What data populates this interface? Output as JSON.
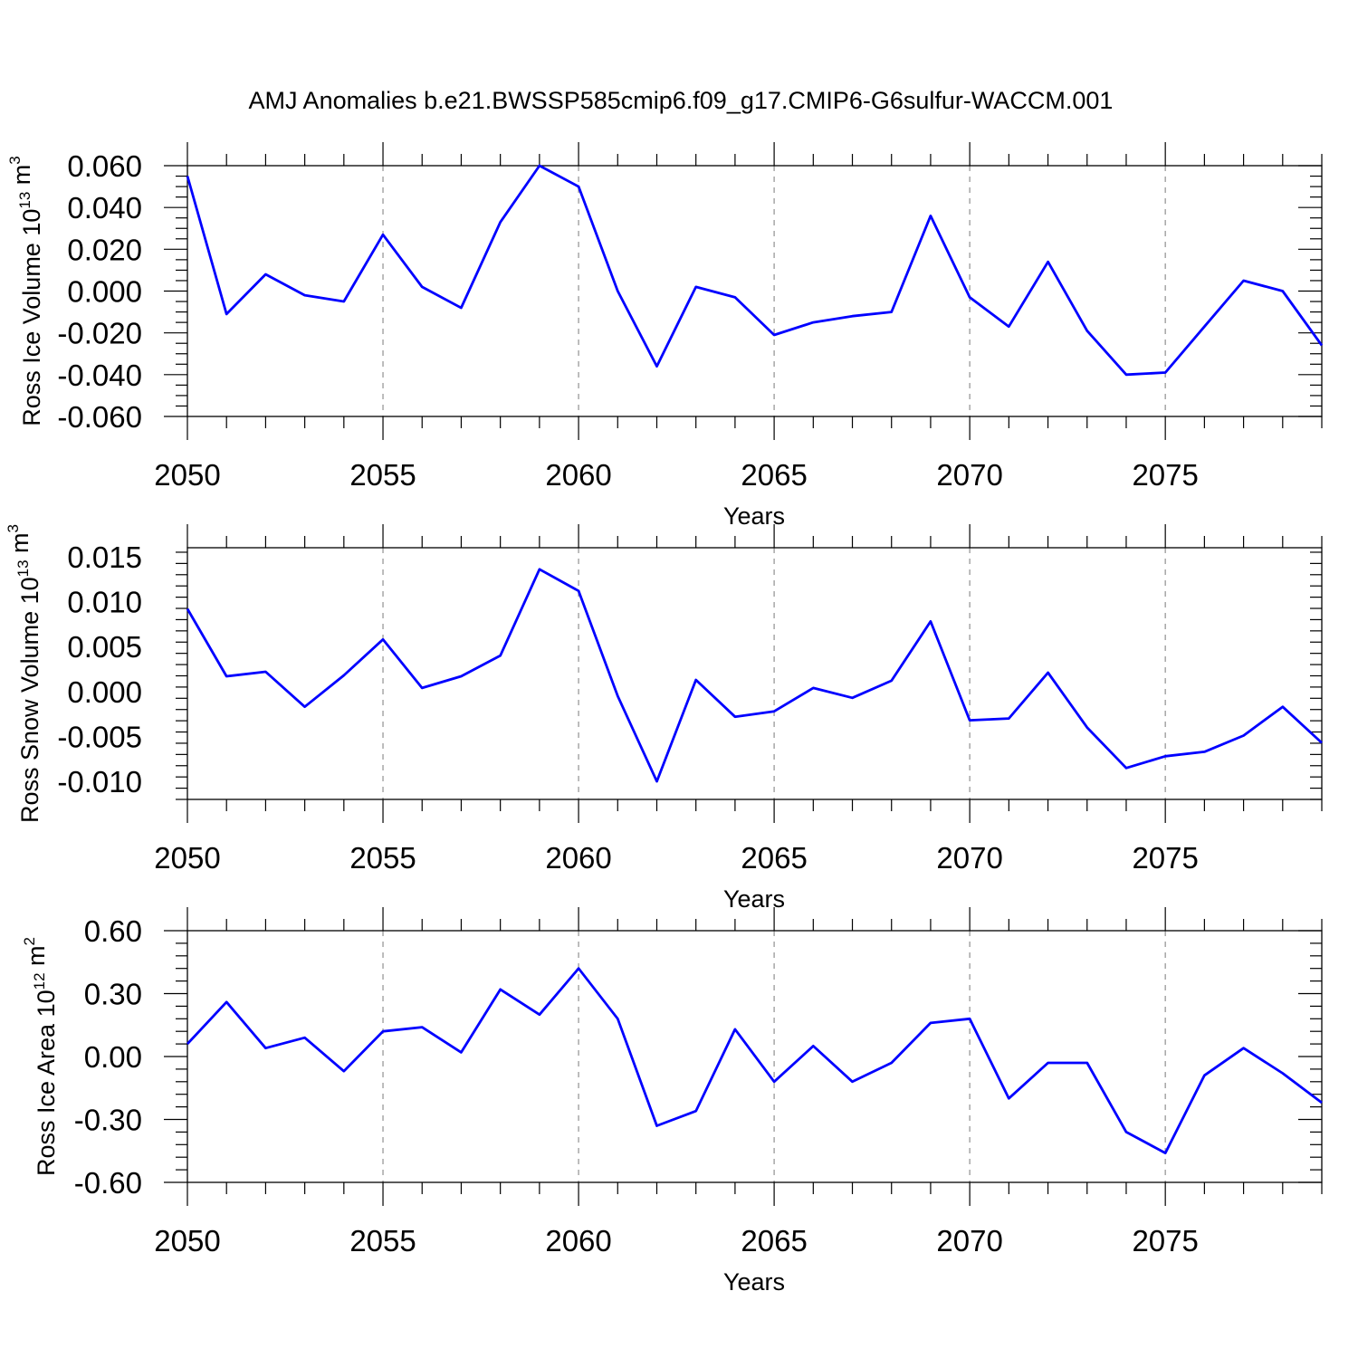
{
  "title": "AMJ Anomalies b.e21.BWSSP585cmip6.f09_g17.CMIP6-G6sulfur-WACCM.001",
  "chart_data": [
    {
      "type": "line",
      "ylabel": "Ross Ice Volume 10",
      "ylabel_exp": "13",
      "ylabel_unit": " m",
      "ylabel_unit_exp": "3",
      "xlabel": "Years",
      "xlim": [
        2050,
        2079
      ],
      "ylim": [
        -0.06,
        0.06
      ],
      "xticks": [
        2050,
        2055,
        2060,
        2065,
        2070,
        2075
      ],
      "xtick_labels": [
        "2050",
        "2055",
        "2060",
        "2065",
        "2070",
        "2075"
      ],
      "yticks": [
        0.06,
        0.04,
        0.02,
        0.0,
        -0.02,
        -0.04,
        -0.06
      ],
      "ytick_labels": [
        "0.060",
        "0.040",
        "0.020",
        "0.000",
        "-0.020",
        "-0.040",
        "-0.060"
      ],
      "grid": "x-dashed-major",
      "series": [
        {
          "color": "#0000ff",
          "x": [
            2050,
            2051,
            2052,
            2053,
            2054,
            2055,
            2056,
            2057,
            2058,
            2059,
            2060,
            2061,
            2062,
            2063,
            2064,
            2065,
            2066,
            2067,
            2068,
            2069,
            2070,
            2071,
            2072,
            2073,
            2074,
            2075,
            2076,
            2077,
            2078,
            2079
          ],
          "values": [
            0.055,
            -0.011,
            0.008,
            -0.002,
            -0.005,
            0.027,
            0.002,
            -0.008,
            0.033,
            0.06,
            0.05,
            0.0,
            -0.036,
            0.002,
            -0.003,
            -0.021,
            -0.015,
            -0.012,
            -0.01,
            0.036,
            -0.003,
            -0.017,
            0.014,
            -0.019,
            -0.04,
            -0.039,
            -0.017,
            0.005,
            0.0,
            -0.026
          ]
        }
      ]
    },
    {
      "type": "line",
      "ylabel": "Ross Snow Volume 10",
      "ylabel_exp": "13",
      "ylabel_unit": " m",
      "ylabel_unit_exp": "3",
      "xlabel": "Years",
      "xlim": [
        2050,
        2079
      ],
      "ylim": [
        -0.012,
        0.016
      ],
      "xticks": [
        2050,
        2055,
        2060,
        2065,
        2070,
        2075
      ],
      "xtick_labels": [
        "2050",
        "2055",
        "2060",
        "2065",
        "2070",
        "2075"
      ],
      "yticks": [
        0.015,
        0.01,
        0.005,
        0.0,
        -0.005,
        -0.01
      ],
      "ytick_labels": [
        "0.015",
        "0.010",
        "0.005",
        "0.000",
        "-0.005",
        "-0.010"
      ],
      "grid": "x-dashed-major",
      "series": [
        {
          "color": "#0000ff",
          "x": [
            2050,
            2051,
            2052,
            2053,
            2054,
            2055,
            2056,
            2057,
            2058,
            2059,
            2060,
            2061,
            2062,
            2063,
            2064,
            2065,
            2066,
            2067,
            2068,
            2069,
            2070,
            2071,
            2072,
            2073,
            2074,
            2075,
            2076,
            2077,
            2078,
            2079
          ],
          "values": [
            0.0092,
            0.0017,
            0.0022,
            -0.0017,
            0.0018,
            0.0058,
            0.0004,
            0.0017,
            0.004,
            0.0136,
            0.0112,
            -0.0005,
            -0.01,
            0.0013,
            -0.0028,
            -0.0022,
            0.0004,
            -0.0007,
            0.0012,
            0.0078,
            -0.0032,
            -0.003,
            0.0021,
            -0.004,
            -0.0085,
            -0.0072,
            -0.0067,
            -0.0049,
            -0.0017,
            -0.0057
          ]
        }
      ]
    },
    {
      "type": "line",
      "ylabel": "Ross Ice Area 10",
      "ylabel_exp": "12",
      "ylabel_unit": " m",
      "ylabel_unit_exp": "2",
      "xlabel": "Years",
      "xlim": [
        2050,
        2079
      ],
      "ylim": [
        -0.6,
        0.6
      ],
      "xticks": [
        2050,
        2055,
        2060,
        2065,
        2070,
        2075
      ],
      "xtick_labels": [
        "2050",
        "2055",
        "2060",
        "2065",
        "2070",
        "2075"
      ],
      "yticks": [
        0.6,
        0.3,
        0.0,
        -0.3,
        -0.6
      ],
      "ytick_labels": [
        "0.60",
        "0.30",
        "0.00",
        "-0.30",
        "-0.60"
      ],
      "grid": "x-dashed-major",
      "series": [
        {
          "color": "#0000ff",
          "x": [
            2050,
            2051,
            2052,
            2053,
            2054,
            2055,
            2056,
            2057,
            2058,
            2059,
            2060,
            2061,
            2062,
            2063,
            2064,
            2065,
            2066,
            2067,
            2068,
            2069,
            2070,
            2071,
            2072,
            2073,
            2074,
            2075,
            2076,
            2077,
            2078,
            2079
          ],
          "values": [
            0.06,
            0.26,
            0.04,
            0.09,
            -0.07,
            0.12,
            0.14,
            0.02,
            0.32,
            0.2,
            0.42,
            0.18,
            -0.33,
            -0.26,
            0.13,
            -0.12,
            0.05,
            -0.12,
            -0.03,
            0.16,
            0.18,
            -0.2,
            -0.03,
            -0.03,
            -0.36,
            -0.46,
            -0.09,
            0.04,
            -0.08,
            -0.22
          ]
        }
      ]
    }
  ]
}
